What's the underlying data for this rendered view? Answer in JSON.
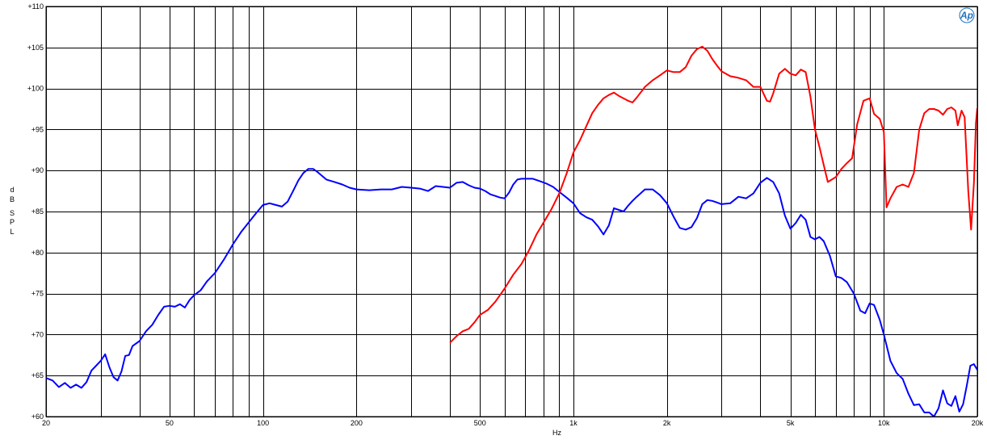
{
  "chart_data": {
    "type": "line",
    "xscale": "log",
    "xlim": [
      20,
      20000
    ],
    "ylim": [
      60,
      110
    ],
    "xlabel": "Hz",
    "ylabel": [
      "d",
      "B",
      "S",
      "P",
      "L"
    ],
    "grid": true,
    "logo": "Ap",
    "colors": {
      "grid": "#000000",
      "logo": "#1e73be"
    },
    "y_ticks": [
      {
        "value": 60,
        "label": "+60"
      },
      {
        "value": 65,
        "label": "+65"
      },
      {
        "value": 70,
        "label": "+70"
      },
      {
        "value": 75,
        "label": "+75"
      },
      {
        "value": 80,
        "label": "+80"
      },
      {
        "value": 85,
        "label": "+85"
      },
      {
        "value": 90,
        "label": "+90"
      },
      {
        "value": 95,
        "label": "+95"
      },
      {
        "value": 100,
        "label": "+100"
      },
      {
        "value": 105,
        "label": "+105"
      },
      {
        "value": 110,
        "label": "+110"
      }
    ],
    "x_ticks": [
      {
        "value": 20,
        "label": "20"
      },
      {
        "value": 50,
        "label": "50"
      },
      {
        "value": 100,
        "label": "100"
      },
      {
        "value": 200,
        "label": "200"
      },
      {
        "value": 500,
        "label": "500"
      },
      {
        "value": 1000,
        "label": "1k"
      },
      {
        "value": 2000,
        "label": "2k"
      },
      {
        "value": 5000,
        "label": "5k"
      },
      {
        "value": 10000,
        "label": "10k"
      },
      {
        "value": 20000,
        "label": "20k"
      }
    ],
    "x_gridlines": [
      20,
      30,
      40,
      50,
      60,
      70,
      80,
      90,
      100,
      200,
      300,
      400,
      500,
      600,
      700,
      800,
      900,
      1000,
      2000,
      3000,
      4000,
      5000,
      6000,
      7000,
      8000,
      9000,
      10000,
      20000
    ],
    "series": [
      {
        "color": "#0000ff",
        "points": [
          [
            20,
            64.7
          ],
          [
            21,
            64.4
          ],
          [
            22,
            63.6
          ],
          [
            23,
            64.1
          ],
          [
            24,
            63.5
          ],
          [
            25,
            63.9
          ],
          [
            26,
            63.5
          ],
          [
            27,
            64.2
          ],
          [
            28,
            65.6
          ],
          [
            29,
            66.2
          ],
          [
            30,
            66.8
          ],
          [
            31,
            67.6
          ],
          [
            32,
            66.0
          ],
          [
            33,
            64.8
          ],
          [
            34,
            64.4
          ],
          [
            35,
            65.5
          ],
          [
            36,
            67.4
          ],
          [
            37,
            67.5
          ],
          [
            38,
            68.6
          ],
          [
            40,
            69.2
          ],
          [
            42,
            70.4
          ],
          [
            44,
            71.2
          ],
          [
            46,
            72.4
          ],
          [
            48,
            73.4
          ],
          [
            50,
            73.5
          ],
          [
            52,
            73.4
          ],
          [
            54,
            73.7
          ],
          [
            56,
            73.3
          ],
          [
            58,
            74.2
          ],
          [
            60,
            74.8
          ],
          [
            63,
            75.4
          ],
          [
            66,
            76.5
          ],
          [
            70,
            77.5
          ],
          [
            75,
            79.2
          ],
          [
            80,
            81.0
          ],
          [
            85,
            82.5
          ],
          [
            90,
            83.7
          ],
          [
            95,
            84.8
          ],
          [
            100,
            85.8
          ],
          [
            105,
            86.0
          ],
          [
            110,
            85.8
          ],
          [
            115,
            85.6
          ],
          [
            120,
            86.2
          ],
          [
            125,
            87.5
          ],
          [
            130,
            88.8
          ],
          [
            135,
            89.7
          ],
          [
            140,
            90.2
          ],
          [
            145,
            90.2
          ],
          [
            150,
            89.8
          ],
          [
            160,
            88.9
          ],
          [
            170,
            88.6
          ],
          [
            180,
            88.3
          ],
          [
            190,
            87.9
          ],
          [
            200,
            87.7
          ],
          [
            220,
            87.6
          ],
          [
            240,
            87.7
          ],
          [
            260,
            87.7
          ],
          [
            280,
            88.0
          ],
          [
            300,
            87.9
          ],
          [
            320,
            87.8
          ],
          [
            340,
            87.5
          ],
          [
            360,
            88.1
          ],
          [
            380,
            88.0
          ],
          [
            400,
            87.9
          ],
          [
            420,
            88.5
          ],
          [
            440,
            88.6
          ],
          [
            460,
            88.2
          ],
          [
            480,
            87.9
          ],
          [
            500,
            87.8
          ],
          [
            520,
            87.5
          ],
          [
            540,
            87.1
          ],
          [
            560,
            86.9
          ],
          [
            580,
            86.7
          ],
          [
            600,
            86.6
          ],
          [
            620,
            87.3
          ],
          [
            640,
            88.3
          ],
          [
            660,
            88.9
          ],
          [
            680,
            89.0
          ],
          [
            700,
            89.0
          ],
          [
            740,
            89.0
          ],
          [
            780,
            88.7
          ],
          [
            820,
            88.4
          ],
          [
            860,
            88.0
          ],
          [
            900,
            87.4
          ],
          [
            950,
            86.7
          ],
          [
            1000,
            86.0
          ],
          [
            1050,
            84.8
          ],
          [
            1100,
            84.3
          ],
          [
            1150,
            84.0
          ],
          [
            1200,
            83.2
          ],
          [
            1250,
            82.2
          ],
          [
            1300,
            83.3
          ],
          [
            1350,
            85.4
          ],
          [
            1400,
            85.2
          ],
          [
            1450,
            85.0
          ],
          [
            1500,
            85.7
          ],
          [
            1550,
            86.3
          ],
          [
            1600,
            86.8
          ],
          [
            1700,
            87.7
          ],
          [
            1800,
            87.7
          ],
          [
            1900,
            87.0
          ],
          [
            2000,
            86.0
          ],
          [
            2100,
            84.4
          ],
          [
            2200,
            83.0
          ],
          [
            2300,
            82.8
          ],
          [
            2400,
            83.1
          ],
          [
            2500,
            84.2
          ],
          [
            2600,
            85.9
          ],
          [
            2700,
            86.4
          ],
          [
            2800,
            86.3
          ],
          [
            2900,
            86.1
          ],
          [
            3000,
            85.9
          ],
          [
            3200,
            86.0
          ],
          [
            3400,
            86.8
          ],
          [
            3600,
            86.6
          ],
          [
            3800,
            87.2
          ],
          [
            4000,
            88.5
          ],
          [
            4200,
            89.1
          ],
          [
            4400,
            88.6
          ],
          [
            4600,
            87.2
          ],
          [
            4800,
            84.5
          ],
          [
            5000,
            82.9
          ],
          [
            5200,
            83.6
          ],
          [
            5400,
            84.6
          ],
          [
            5600,
            84.0
          ],
          [
            5800,
            81.9
          ],
          [
            6000,
            81.6
          ],
          [
            6200,
            81.9
          ],
          [
            6400,
            81.4
          ],
          [
            6700,
            79.6
          ],
          [
            7000,
            77.1
          ],
          [
            7300,
            76.9
          ],
          [
            7600,
            76.4
          ],
          [
            8000,
            75.0
          ],
          [
            8400,
            72.9
          ],
          [
            8700,
            72.6
          ],
          [
            9000,
            73.8
          ],
          [
            9300,
            73.6
          ],
          [
            9700,
            71.8
          ],
          [
            10000,
            70.0
          ],
          [
            10500,
            66.8
          ],
          [
            11000,
            65.3
          ],
          [
            11500,
            64.6
          ],
          [
            12000,
            62.8
          ],
          [
            12500,
            61.4
          ],
          [
            13000,
            61.5
          ],
          [
            13500,
            60.5
          ],
          [
            14000,
            60.5
          ],
          [
            14500,
            59.5
          ],
          [
            15000,
            61.0
          ],
          [
            15500,
            63.2
          ],
          [
            16000,
            61.6
          ],
          [
            16500,
            61.3
          ],
          [
            17000,
            62.5
          ],
          [
            17500,
            60.6
          ],
          [
            18000,
            61.5
          ],
          [
            18500,
            63.8
          ],
          [
            19000,
            66.2
          ],
          [
            19500,
            66.4
          ],
          [
            20000,
            65.7
          ]
        ]
      },
      {
        "color": "#ff0000",
        "points": [
          [
            400,
            69.0
          ],
          [
            420,
            69.8
          ],
          [
            440,
            70.4
          ],
          [
            460,
            70.7
          ],
          [
            480,
            71.5
          ],
          [
            500,
            72.4
          ],
          [
            530,
            73.0
          ],
          [
            560,
            74.0
          ],
          [
            600,
            75.6
          ],
          [
            640,
            77.3
          ],
          [
            680,
            78.6
          ],
          [
            720,
            80.3
          ],
          [
            760,
            82.2
          ],
          [
            800,
            83.6
          ],
          [
            850,
            85.3
          ],
          [
            900,
            87.2
          ],
          [
            950,
            89.6
          ],
          [
            1000,
            92.2
          ],
          [
            1050,
            93.7
          ],
          [
            1100,
            95.4
          ],
          [
            1150,
            97.0
          ],
          [
            1200,
            98.0
          ],
          [
            1250,
            98.8
          ],
          [
            1300,
            99.2
          ],
          [
            1350,
            99.5
          ],
          [
            1400,
            99.1
          ],
          [
            1500,
            98.5
          ],
          [
            1550,
            98.3
          ],
          [
            1600,
            98.9
          ],
          [
            1700,
            100.2
          ],
          [
            1800,
            101.0
          ],
          [
            1900,
            101.6
          ],
          [
            2000,
            102.2
          ],
          [
            2100,
            102.0
          ],
          [
            2200,
            102.0
          ],
          [
            2300,
            102.6
          ],
          [
            2400,
            104.0
          ],
          [
            2500,
            104.8
          ],
          [
            2600,
            105.1
          ],
          [
            2700,
            104.6
          ],
          [
            2800,
            103.6
          ],
          [
            2900,
            102.8
          ],
          [
            3000,
            102.1
          ],
          [
            3200,
            101.5
          ],
          [
            3400,
            101.3
          ],
          [
            3600,
            101.0
          ],
          [
            3800,
            100.2
          ],
          [
            4000,
            100.2
          ],
          [
            4200,
            98.5
          ],
          [
            4300,
            98.4
          ],
          [
            4400,
            99.4
          ],
          [
            4600,
            101.8
          ],
          [
            4800,
            102.4
          ],
          [
            5000,
            101.8
          ],
          [
            5200,
            101.6
          ],
          [
            5400,
            102.3
          ],
          [
            5600,
            102.0
          ],
          [
            5800,
            99.0
          ],
          [
            6000,
            95.0
          ],
          [
            6200,
            92.9
          ],
          [
            6400,
            90.7
          ],
          [
            6600,
            88.6
          ],
          [
            6800,
            88.9
          ],
          [
            7000,
            89.2
          ],
          [
            7300,
            90.2
          ],
          [
            7600,
            90.9
          ],
          [
            7900,
            91.5
          ],
          [
            8200,
            95.6
          ],
          [
            8600,
            98.5
          ],
          [
            9000,
            98.8
          ],
          [
            9300,
            96.9
          ],
          [
            9700,
            96.3
          ],
          [
            10000,
            94.7
          ],
          [
            10200,
            85.5
          ],
          [
            10500,
            86.6
          ],
          [
            11000,
            88.0
          ],
          [
            11500,
            88.3
          ],
          [
            12000,
            88.0
          ],
          [
            12500,
            89.7
          ],
          [
            13000,
            95.0
          ],
          [
            13500,
            97.0
          ],
          [
            14000,
            97.5
          ],
          [
            14500,
            97.5
          ],
          [
            15000,
            97.3
          ],
          [
            15500,
            96.8
          ],
          [
            16000,
            97.5
          ],
          [
            16500,
            97.7
          ],
          [
            17000,
            97.3
          ],
          [
            17300,
            95.5
          ],
          [
            17800,
            97.3
          ],
          [
            18200,
            96.5
          ],
          [
            18700,
            87.5
          ],
          [
            19100,
            82.8
          ],
          [
            19500,
            88.5
          ],
          [
            19800,
            95.8
          ],
          [
            20000,
            97.6
          ]
        ]
      }
    ]
  }
}
